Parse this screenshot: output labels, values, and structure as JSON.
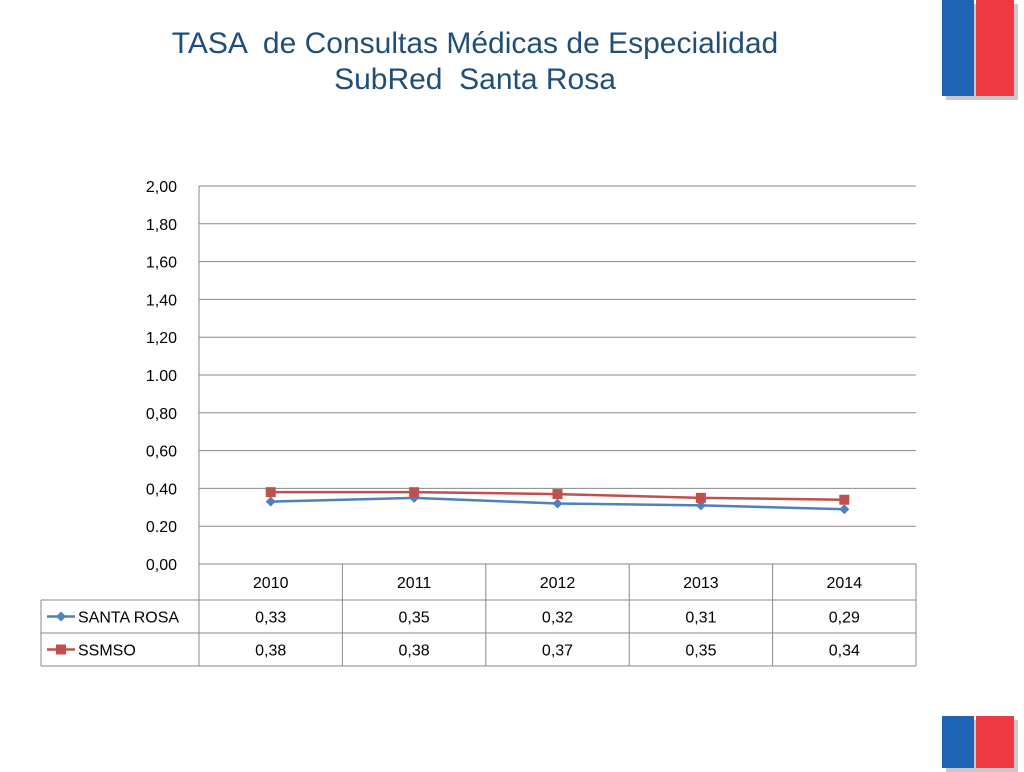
{
  "page": {
    "title_line1": "TASA  de Consultas Médicas de Especialidad",
    "title_line2": "SubRed  Santa Rosa"
  },
  "colors": {
    "title": "#1F4E79",
    "santa_rosa": "#4F81BD",
    "ssmso": "#C0504D",
    "flag_blue": "#1F63B5",
    "flag_red": "#EE3B43"
  },
  "chart_data": {
    "type": "line",
    "title": "TASA  de Consultas Médicas de Especialidad SubRed  Santa Rosa",
    "categories": [
      "2010",
      "2011",
      "2012",
      "2013",
      "2014"
    ],
    "ylim": [
      0,
      2
    ],
    "yticks": [
      0,
      0.2,
      0.4,
      0.6,
      0.8,
      1.0,
      1.2,
      1.4,
      1.6,
      1.8,
      2.0
    ],
    "ytick_labels": [
      "0,00",
      "0.20",
      "0,40",
      "0,60",
      "0,80",
      "1.00",
      "1,20",
      "1,40",
      "1,60",
      "1,80",
      "2,00"
    ],
    "grid": true,
    "legend": "data-table",
    "series": [
      {
        "name": "SANTA ROSA",
        "marker": "diamond",
        "color": "#4F81BD",
        "values": [
          0.33,
          0.35,
          0.32,
          0.31,
          0.29
        ],
        "labels": [
          "0,33",
          "0,35",
          "0,32",
          "0,31",
          "0,29"
        ]
      },
      {
        "name": "SSMSO",
        "marker": "square",
        "color": "#C0504D",
        "values": [
          0.38,
          0.38,
          0.37,
          0.35,
          0.34
        ],
        "labels": [
          "0,38",
          "0,38",
          "0,37",
          "0,35",
          "0,34"
        ]
      }
    ]
  }
}
